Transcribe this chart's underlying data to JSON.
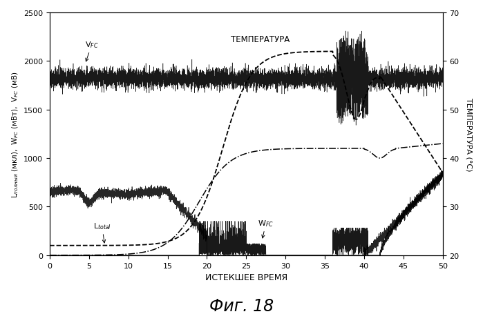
{
  "fig_label": "Фиг. 18",
  "xlabel": "ИСТЕКШЕЕ ВРЕМЯ",
  "ylabel_left": "L_полный (мкл),  W_FC (мВт),  V_FC (мВ)",
  "ylabel_right": "ТЕМПЕРАТУРА (°С)",
  "xlim": [
    0,
    50
  ],
  "ylim_left": [
    0,
    2500
  ],
  "ylim_right": [
    20,
    70
  ],
  "yticks_left": [
    0,
    500,
    1000,
    1500,
    2000,
    2500
  ],
  "yticks_right": [
    20,
    30,
    40,
    50,
    60,
    70
  ],
  "xticks": [
    0,
    5,
    10,
    15,
    20,
    25,
    30,
    35,
    40,
    45,
    50
  ],
  "background_color": "#ffffff",
  "seed": 42
}
